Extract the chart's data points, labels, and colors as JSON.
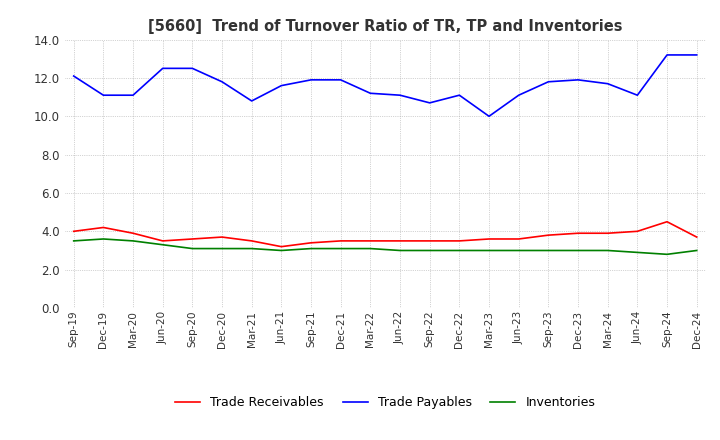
{
  "title": "[5660]  Trend of Turnover Ratio of TR, TP and Inventories",
  "x_labels": [
    "Sep-19",
    "Dec-19",
    "Mar-20",
    "Jun-20",
    "Sep-20",
    "Dec-20",
    "Mar-21",
    "Jun-21",
    "Sep-21",
    "Dec-21",
    "Mar-22",
    "Jun-22",
    "Sep-22",
    "Dec-22",
    "Mar-23",
    "Jun-23",
    "Sep-23",
    "Dec-23",
    "Mar-24",
    "Jun-24",
    "Sep-24",
    "Dec-24"
  ],
  "ylim": [
    0,
    14.0
  ],
  "yticks": [
    0.0,
    2.0,
    4.0,
    6.0,
    8.0,
    10.0,
    12.0,
    14.0
  ],
  "trade_receivables": [
    4.0,
    4.2,
    3.9,
    3.5,
    3.6,
    3.7,
    3.5,
    3.2,
    3.4,
    3.5,
    3.5,
    3.5,
    3.5,
    3.5,
    3.6,
    3.6,
    3.8,
    3.9,
    3.9,
    4.0,
    4.5,
    3.7
  ],
  "trade_payables": [
    12.1,
    11.1,
    11.1,
    12.5,
    12.5,
    11.8,
    10.8,
    11.6,
    11.9,
    11.9,
    11.2,
    11.1,
    10.7,
    11.1,
    10.0,
    11.1,
    11.8,
    11.9,
    11.7,
    11.1,
    13.2,
    13.2
  ],
  "inventories": [
    3.5,
    3.6,
    3.5,
    3.3,
    3.1,
    3.1,
    3.1,
    3.0,
    3.1,
    3.1,
    3.1,
    3.0,
    3.0,
    3.0,
    3.0,
    3.0,
    3.0,
    3.0,
    3.0,
    2.9,
    2.8,
    3.0
  ],
  "tr_color": "#ff0000",
  "tp_color": "#0000ff",
  "inv_color": "#008000",
  "legend_labels": [
    "Trade Receivables",
    "Trade Payables",
    "Inventories"
  ],
  "background_color": "#ffffff",
  "grid_color": "#aaaaaa"
}
